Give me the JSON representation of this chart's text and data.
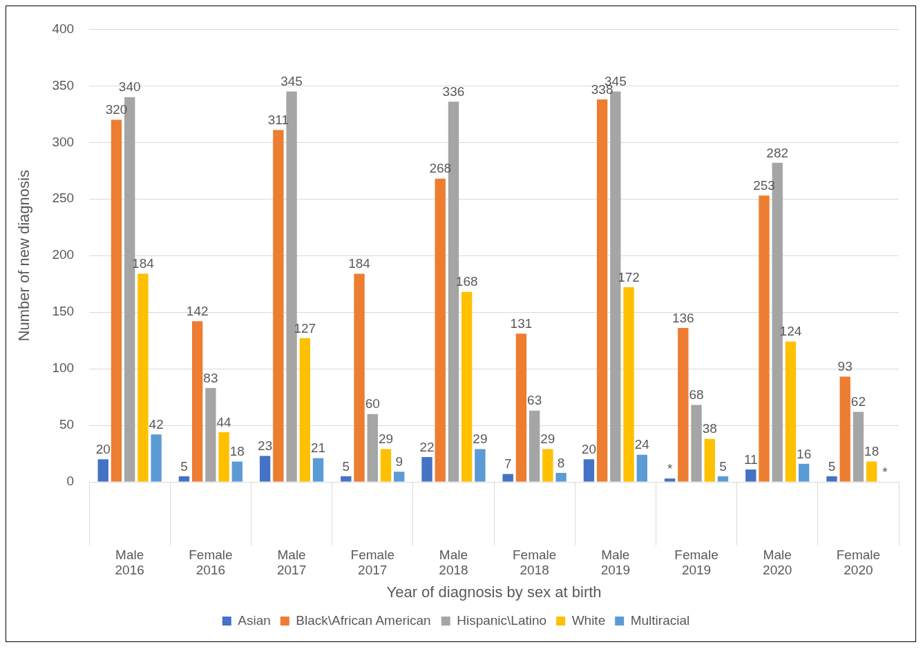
{
  "chart_data": {
    "type": "bar",
    "xlabel": "Year of diagnosis by sex at birth",
    "ylabel": "Number of new diagnosis",
    "categories": [
      "Male\n2016",
      "Female\n2016",
      "Male\n2017",
      "Female\n2017",
      "Male\n2018",
      "Female\n2018",
      "Male\n2019",
      "Female\n2019",
      "Male\n2020",
      "Female\n2020"
    ],
    "series": [
      {
        "name": "Asian",
        "color": "#4472c4",
        "values": [
          20,
          5,
          23,
          5,
          22,
          7,
          20,
          3,
          11,
          5
        ],
        "value_labels": [
          "20",
          "5",
          "23",
          "5",
          "22",
          "7",
          "20",
          "*",
          "11",
          "5"
        ]
      },
      {
        "name": "Black\\African American",
        "color": "#ed7d31",
        "values": [
          320,
          142,
          311,
          184,
          268,
          131,
          338,
          136,
          253,
          93
        ],
        "value_labels": [
          "320",
          "142",
          "311",
          "184",
          "268",
          "131",
          "338",
          "136",
          "253",
          "93"
        ]
      },
      {
        "name": "Hispanic\\Latino",
        "color": "#a5a5a5",
        "values": [
          340,
          83,
          345,
          60,
          336,
          63,
          345,
          68,
          282,
          62
        ],
        "value_labels": [
          "340",
          "83",
          "345",
          "60",
          "336",
          "63",
          "345",
          "68",
          "282",
          "62"
        ]
      },
      {
        "name": "White",
        "color": "#ffc000",
        "values": [
          184,
          44,
          127,
          29,
          168,
          29,
          172,
          38,
          124,
          18
        ],
        "value_labels": [
          "184",
          "44",
          "127",
          "29",
          "168",
          "29",
          "172",
          "38",
          "124",
          "18"
        ]
      },
      {
        "name": "Multiracial",
        "color": "#5b9bd5",
        "values": [
          42,
          18,
          21,
          9,
          29,
          8,
          24,
          5,
          16,
          null
        ],
        "value_labels": [
          "42",
          "18",
          "21",
          "9",
          "29",
          "8",
          "24",
          "5",
          "16",
          "*"
        ]
      }
    ],
    "ylim": [
      0,
      400
    ],
    "yticks": [
      0,
      50,
      100,
      150,
      200,
      250,
      300,
      350,
      400
    ],
    "grid": "y",
    "legend": "bottom"
  }
}
